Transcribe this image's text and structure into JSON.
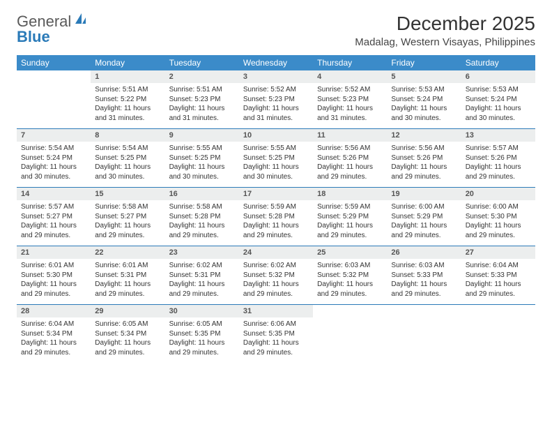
{
  "logo": {
    "text_general": "General",
    "text_blue": "Blue"
  },
  "title": "December 2025",
  "location": "Madalag, Western Visayas, Philippines",
  "colors": {
    "header_bg": "#3b8bc9",
    "header_text": "#ffffff",
    "daynum_bg": "#eceeee",
    "row_border": "#2a7ab8",
    "logo_blue": "#2a7ab8",
    "logo_gray": "#5a5a5a",
    "body_text": "#333333"
  },
  "weekdays": [
    "Sunday",
    "Monday",
    "Tuesday",
    "Wednesday",
    "Thursday",
    "Friday",
    "Saturday"
  ],
  "first_weekday_index": 1,
  "days": [
    {
      "n": 1,
      "sunrise": "5:51 AM",
      "sunset": "5:22 PM",
      "daylight": "11 hours and 31 minutes."
    },
    {
      "n": 2,
      "sunrise": "5:51 AM",
      "sunset": "5:23 PM",
      "daylight": "11 hours and 31 minutes."
    },
    {
      "n": 3,
      "sunrise": "5:52 AM",
      "sunset": "5:23 PM",
      "daylight": "11 hours and 31 minutes."
    },
    {
      "n": 4,
      "sunrise": "5:52 AM",
      "sunset": "5:23 PM",
      "daylight": "11 hours and 31 minutes."
    },
    {
      "n": 5,
      "sunrise": "5:53 AM",
      "sunset": "5:24 PM",
      "daylight": "11 hours and 30 minutes."
    },
    {
      "n": 6,
      "sunrise": "5:53 AM",
      "sunset": "5:24 PM",
      "daylight": "11 hours and 30 minutes."
    },
    {
      "n": 7,
      "sunrise": "5:54 AM",
      "sunset": "5:24 PM",
      "daylight": "11 hours and 30 minutes."
    },
    {
      "n": 8,
      "sunrise": "5:54 AM",
      "sunset": "5:25 PM",
      "daylight": "11 hours and 30 minutes."
    },
    {
      "n": 9,
      "sunrise": "5:55 AM",
      "sunset": "5:25 PM",
      "daylight": "11 hours and 30 minutes."
    },
    {
      "n": 10,
      "sunrise": "5:55 AM",
      "sunset": "5:25 PM",
      "daylight": "11 hours and 30 minutes."
    },
    {
      "n": 11,
      "sunrise": "5:56 AM",
      "sunset": "5:26 PM",
      "daylight": "11 hours and 29 minutes."
    },
    {
      "n": 12,
      "sunrise": "5:56 AM",
      "sunset": "5:26 PM",
      "daylight": "11 hours and 29 minutes."
    },
    {
      "n": 13,
      "sunrise": "5:57 AM",
      "sunset": "5:26 PM",
      "daylight": "11 hours and 29 minutes."
    },
    {
      "n": 14,
      "sunrise": "5:57 AM",
      "sunset": "5:27 PM",
      "daylight": "11 hours and 29 minutes."
    },
    {
      "n": 15,
      "sunrise": "5:58 AM",
      "sunset": "5:27 PM",
      "daylight": "11 hours and 29 minutes."
    },
    {
      "n": 16,
      "sunrise": "5:58 AM",
      "sunset": "5:28 PM",
      "daylight": "11 hours and 29 minutes."
    },
    {
      "n": 17,
      "sunrise": "5:59 AM",
      "sunset": "5:28 PM",
      "daylight": "11 hours and 29 minutes."
    },
    {
      "n": 18,
      "sunrise": "5:59 AM",
      "sunset": "5:29 PM",
      "daylight": "11 hours and 29 minutes."
    },
    {
      "n": 19,
      "sunrise": "6:00 AM",
      "sunset": "5:29 PM",
      "daylight": "11 hours and 29 minutes."
    },
    {
      "n": 20,
      "sunrise": "6:00 AM",
      "sunset": "5:30 PM",
      "daylight": "11 hours and 29 minutes."
    },
    {
      "n": 21,
      "sunrise": "6:01 AM",
      "sunset": "5:30 PM",
      "daylight": "11 hours and 29 minutes."
    },
    {
      "n": 22,
      "sunrise": "6:01 AM",
      "sunset": "5:31 PM",
      "daylight": "11 hours and 29 minutes."
    },
    {
      "n": 23,
      "sunrise": "6:02 AM",
      "sunset": "5:31 PM",
      "daylight": "11 hours and 29 minutes."
    },
    {
      "n": 24,
      "sunrise": "6:02 AM",
      "sunset": "5:32 PM",
      "daylight": "11 hours and 29 minutes."
    },
    {
      "n": 25,
      "sunrise": "6:03 AM",
      "sunset": "5:32 PM",
      "daylight": "11 hours and 29 minutes."
    },
    {
      "n": 26,
      "sunrise": "6:03 AM",
      "sunset": "5:33 PM",
      "daylight": "11 hours and 29 minutes."
    },
    {
      "n": 27,
      "sunrise": "6:04 AM",
      "sunset": "5:33 PM",
      "daylight": "11 hours and 29 minutes."
    },
    {
      "n": 28,
      "sunrise": "6:04 AM",
      "sunset": "5:34 PM",
      "daylight": "11 hours and 29 minutes."
    },
    {
      "n": 29,
      "sunrise": "6:05 AM",
      "sunset": "5:34 PM",
      "daylight": "11 hours and 29 minutes."
    },
    {
      "n": 30,
      "sunrise": "6:05 AM",
      "sunset": "5:35 PM",
      "daylight": "11 hours and 29 minutes."
    },
    {
      "n": 31,
      "sunrise": "6:06 AM",
      "sunset": "5:35 PM",
      "daylight": "11 hours and 29 minutes."
    }
  ],
  "labels": {
    "sunrise": "Sunrise:",
    "sunset": "Sunset:",
    "daylight": "Daylight:"
  }
}
